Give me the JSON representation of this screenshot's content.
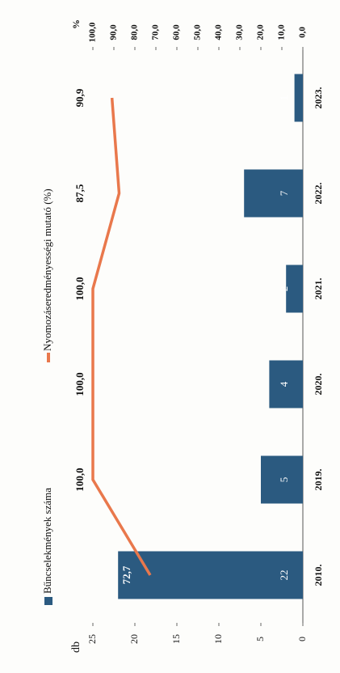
{
  "chart_data": {
    "type": "bar_line",
    "categories": [
      "2010.",
      "2019.",
      "2020.",
      "2021.",
      "2022.",
      "2023."
    ],
    "series": [
      {
        "name": "Bűncselekmények száma",
        "color": "#2b5a80",
        "values": [
          22,
          5,
          4,
          2,
          7,
          1
        ]
      },
      {
        "name": "Nyomozáseredményességi mutató (%)",
        "color": "#e9784c",
        "axis": "y2",
        "values": [
          72.7,
          100,
          100,
          100,
          87.5,
          90.9
        ],
        "value_labels": [
          "72,7",
          "100,0",
          "100,0",
          "100,0",
          "87,5",
          "90,9"
        ]
      }
    ],
    "ylabel": "db",
    "y2label": "%",
    "ylim": [
      0,
      25
    ],
    "yticks": [
      0,
      5,
      10,
      15,
      20,
      25
    ],
    "y2lim": [
      0,
      100
    ],
    "y2ticks": [
      {
        "value": 0,
        "label": "0,0"
      },
      {
        "value": 10,
        "label": "10,0"
      },
      {
        "value": 20,
        "label": "20,0"
      },
      {
        "value": 30,
        "label": "30,0"
      },
      {
        "value": 40,
        "label": "40,0"
      },
      {
        "value": 50,
        "label": "50,0"
      },
      {
        "value": 60,
        "label": "60,0"
      },
      {
        "value": 70,
        "label": "70,0"
      },
      {
        "value": 80,
        "label": "80,0"
      },
      {
        "value": 90,
        "label": "90,0"
      },
      {
        "value": 100,
        "label": "100,0"
      }
    ],
    "grid": false,
    "legend": "top"
  }
}
